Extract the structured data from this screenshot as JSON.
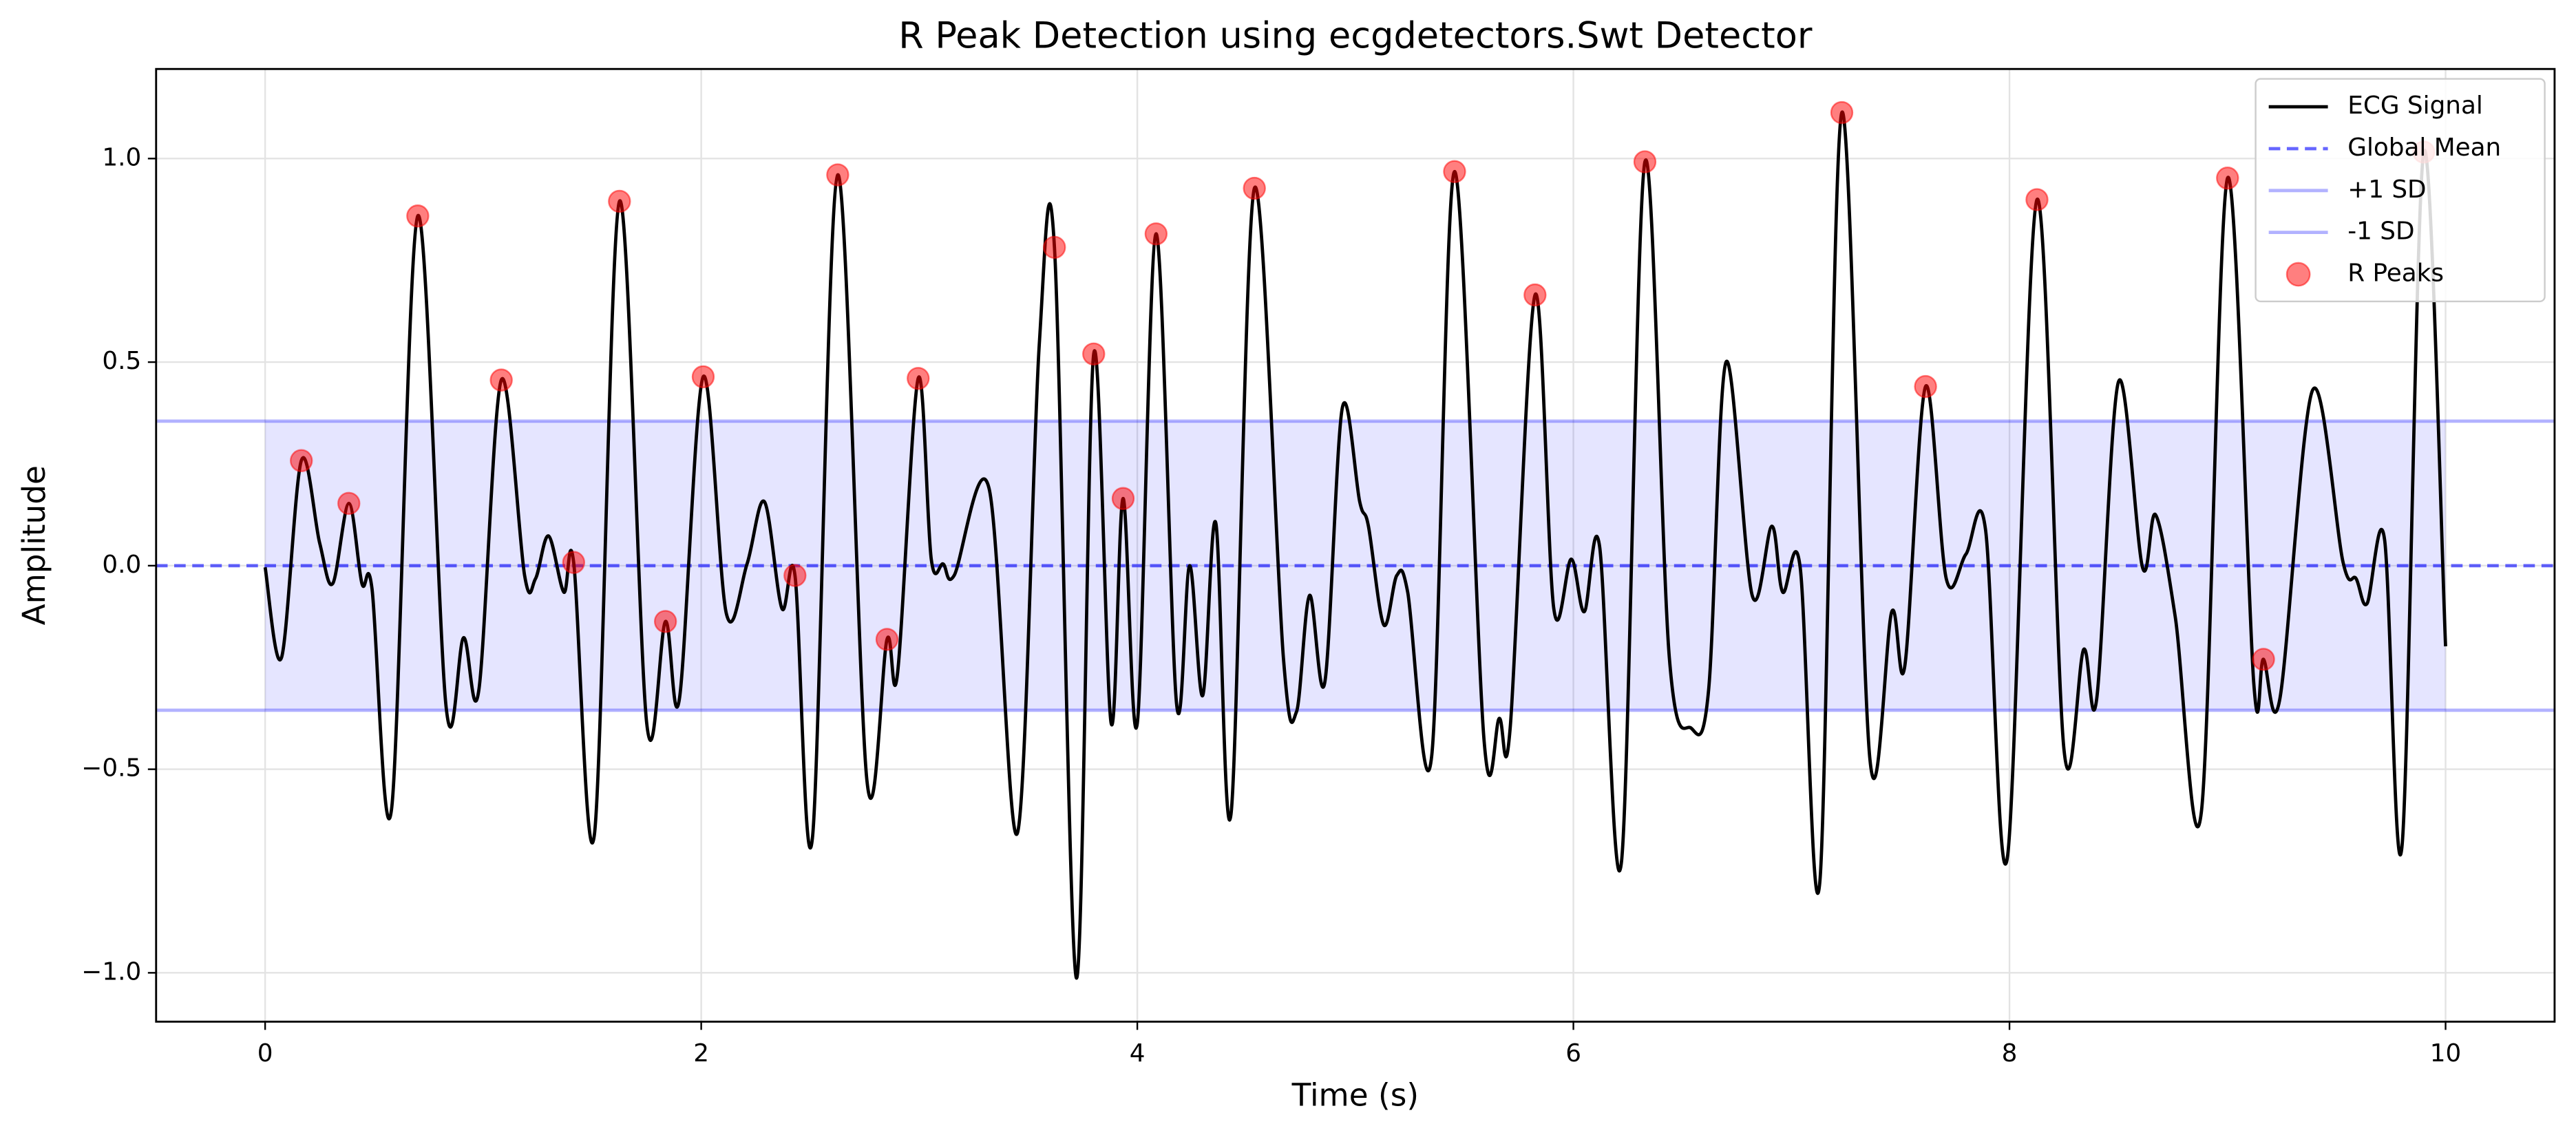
{
  "chart_data": {
    "type": "line",
    "title": "R Peak Detection using ecgdetectors.Swt Detector",
    "x_label": "Time (s)",
    "y_label": "Amplitude",
    "xlim": [
      -0.5,
      10.5
    ],
    "ylim": [
      -1.12,
      1.22
    ],
    "xticks": [
      0,
      2,
      4,
      6,
      8,
      10
    ],
    "yticks": [
      {
        "value": -1,
        "label": "−1.0"
      },
      {
        "value": -0.5,
        "label": "−0.5"
      },
      {
        "value": 0,
        "label": "0.0"
      },
      0.5,
      {
        "value": 1,
        "label": "1.0"
      }
    ],
    "grid": true,
    "legend": "upper right",
    "series": [
      {
        "name": "ECG Signal",
        "type": "line",
        "color": "#000000",
        "x": [
          0,
          0.075,
          0.166,
          0.25,
          0.31,
          0.384,
          0.444,
          0.49,
          0.58,
          0.7,
          0.83,
          0.91,
          0.98,
          1.083,
          1.19,
          1.24,
          1.3,
          1.37,
          1.415,
          1.51,
          1.625,
          1.75,
          1.836,
          1.9,
          2.009,
          2.115,
          2.21,
          2.29,
          2.37,
          2.43,
          2.51,
          2.626,
          2.76,
          2.852,
          2.9,
          2.995,
          3.055,
          3.11,
          3.16,
          3.32,
          3.45,
          3.55,
          3.62,
          3.72,
          3.8,
          3.88,
          3.935,
          4.0,
          4.086,
          4.18,
          4.24,
          4.3,
          4.36,
          4.43,
          4.537,
          4.67,
          4.73,
          4.79,
          4.86,
          4.94,
          5.02,
          5.06,
          5.13,
          5.19,
          5.24,
          5.35,
          5.455,
          5.59,
          5.66,
          5.71,
          5.824,
          5.91,
          5.99,
          6.05,
          6.12,
          6.22,
          6.328,
          6.44,
          6.54,
          6.62,
          6.7,
          6.82,
          6.91,
          6.96,
          7.04,
          7.13,
          7.231,
          7.36,
          7.46,
          7.52,
          7.615,
          7.71,
          7.8,
          7.89,
          7.99,
          8.126,
          8.25,
          8.34,
          8.4,
          8.5,
          8.61,
          8.67,
          8.76,
          8.88,
          9.0,
          9.12,
          9.165,
          9.24,
          9.39,
          9.53,
          9.59,
          9.64,
          9.72,
          9.8,
          9.9,
          10.0
        ],
        "values": [
          -0.004,
          -0.226,
          0.258,
          0.056,
          -0.044,
          0.153,
          -0.044,
          -0.056,
          -0.597,
          0.859,
          -0.347,
          -0.177,
          -0.306,
          0.456,
          -0.024,
          -0.032,
          0.073,
          -0.065,
          0.008,
          -0.661,
          0.895,
          -0.387,
          -0.137,
          -0.327,
          0.464,
          -0.117,
          0.004,
          0.157,
          -0.105,
          -0.024,
          -0.669,
          0.96,
          -0.528,
          -0.181,
          -0.266,
          0.46,
          0.016,
          0.004,
          -0.024,
          0.19,
          -0.657,
          0.54,
          0.782,
          -1.012,
          0.52,
          -0.387,
          0.165,
          -0.387,
          0.815,
          -0.339,
          0.0,
          -0.319,
          0.105,
          -0.609,
          0.927,
          -0.226,
          -0.359,
          -0.073,
          -0.286,
          0.387,
          0.157,
          0.097,
          -0.145,
          -0.024,
          -0.065,
          -0.468,
          0.968,
          -0.427,
          -0.375,
          -0.399,
          0.665,
          -0.105,
          0.016,
          -0.113,
          0.048,
          -0.73,
          0.992,
          -0.226,
          -0.399,
          -0.306,
          0.5,
          -0.073,
          0.097,
          -0.065,
          -0.004,
          -0.778,
          1.113,
          -0.476,
          -0.113,
          -0.246,
          0.44,
          -0.032,
          0.028,
          0.089,
          -0.718,
          0.899,
          -0.452,
          -0.206,
          -0.327,
          0.452,
          -0.004,
          0.125,
          -0.125,
          -0.605,
          0.952,
          -0.286,
          -0.23,
          -0.327,
          0.431,
          0.008,
          -0.032,
          -0.093,
          0.065,
          -0.69,
          1.016,
          -0.198
        ]
      },
      {
        "name": "R Peaks",
        "type": "scatter",
        "color": "#ff0000",
        "x": [
          0.166,
          0.384,
          0.7,
          1.083,
          1.415,
          1.625,
          1.836,
          2.009,
          2.43,
          2.626,
          2.852,
          2.995,
          3.62,
          3.8,
          3.935,
          4.086,
          4.537,
          5.455,
          5.824,
          6.328,
          7.231,
          7.615,
          8.126,
          9.0,
          9.165,
          9.9
        ],
        "values": [
          0.258,
          0.153,
          0.859,
          0.456,
          0.008,
          0.895,
          -0.137,
          0.464,
          -0.024,
          0.96,
          -0.181,
          0.46,
          0.782,
          0.52,
          0.165,
          0.815,
          0.927,
          0.968,
          0.665,
          0.992,
          1.113,
          0.44,
          0.899,
          0.952,
          -0.23,
          1.016
        ]
      }
    ],
    "reference_lines": [
      {
        "name": "Global Mean",
        "value": 0,
        "color": "#0000ff",
        "style": "dashed"
      },
      {
        "name": "+1 SD",
        "value": 0.355,
        "color": "#0000ff",
        "style": "solid"
      },
      {
        "name": "-1 SD",
        "value": -0.355,
        "color": "#0000ff",
        "style": "solid"
      }
    ]
  }
}
